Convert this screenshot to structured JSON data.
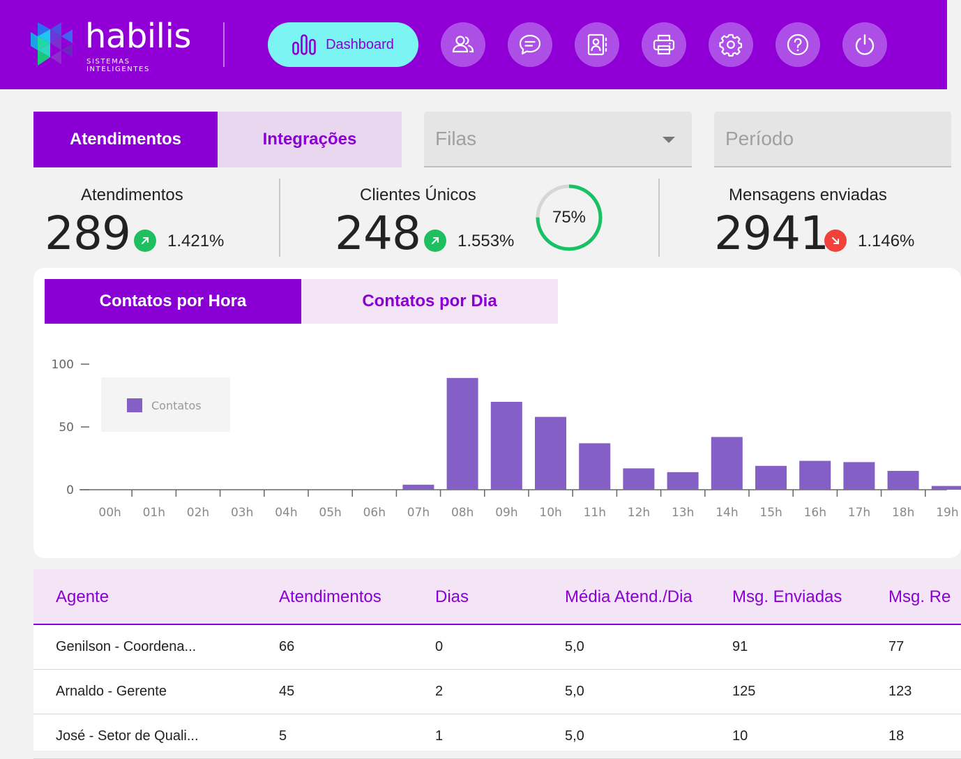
{
  "header": {
    "logo_text": "habilis",
    "logo_subtitle": "SISTEMAS INTELIGENTES",
    "nav": {
      "dashboard_label": "Dashboard",
      "icons": [
        "users-icon",
        "chat-icon",
        "contacts-icon",
        "printer-icon",
        "gear-icon",
        "help-icon",
        "power-icon"
      ]
    },
    "colors": {
      "header_bg": "#9000d6",
      "active_nav": "#7df4f4",
      "nav_button": "#ad4ee6"
    }
  },
  "filters": {
    "tabs": [
      {
        "label": "Atendimentos",
        "active": true
      },
      {
        "label": "Integrações",
        "active": false
      }
    ],
    "queue_placeholder": "Filas",
    "period_placeholder": "Período"
  },
  "stats": {
    "atendimentos": {
      "label": "Atendimentos",
      "value": "289",
      "change": "1.421%",
      "trend": "up"
    },
    "clientes": {
      "label": "Clientes Únicos",
      "value": "248",
      "change": "1.553%",
      "trend": "up",
      "ring_label": "75%",
      "ring_fraction": 0.75
    },
    "mensagens": {
      "label": "Mensagens enviadas",
      "value": "2941",
      "change": "1.146%",
      "trend": "down"
    }
  },
  "chart_tabs": [
    {
      "label": "Contatos por Hora",
      "active": true
    },
    {
      "label": "Contatos por Dia",
      "active": false
    }
  ],
  "chart_data": {
    "type": "bar",
    "categories": [
      "00h",
      "01h",
      "02h",
      "03h",
      "04h",
      "05h",
      "06h",
      "07h",
      "08h",
      "09h",
      "10h",
      "11h",
      "12h",
      "13h",
      "14h",
      "15h",
      "16h",
      "17h",
      "18h",
      "19h"
    ],
    "series": [
      {
        "name": "Contatos",
        "values": [
          0,
          0,
          0,
          0,
          0,
          0,
          0,
          4,
          89,
          70,
          58,
          37,
          17,
          14,
          42,
          19,
          23,
          22,
          15,
          3
        ]
      }
    ],
    "y_ticks": [
      "0",
      "50",
      "100"
    ],
    "ylim": [
      0,
      100
    ],
    "legend_position": "top-left",
    "bar_color": "#8460c6"
  },
  "table": {
    "columns": [
      "Agente",
      "Atendimentos",
      "Dias",
      "Média Atend./Dia",
      "Msg. Enviadas",
      "Msg. Re"
    ],
    "rows": [
      [
        "Genilson - Coordena...",
        "66",
        "0",
        "5,0",
        "91",
        "77"
      ],
      [
        "Arnaldo - Gerente",
        "45",
        "2",
        "5,0",
        "125",
        "123"
      ],
      [
        "José - Setor de Quali...",
        "5",
        "1",
        "5,0",
        "10",
        "18"
      ]
    ]
  }
}
